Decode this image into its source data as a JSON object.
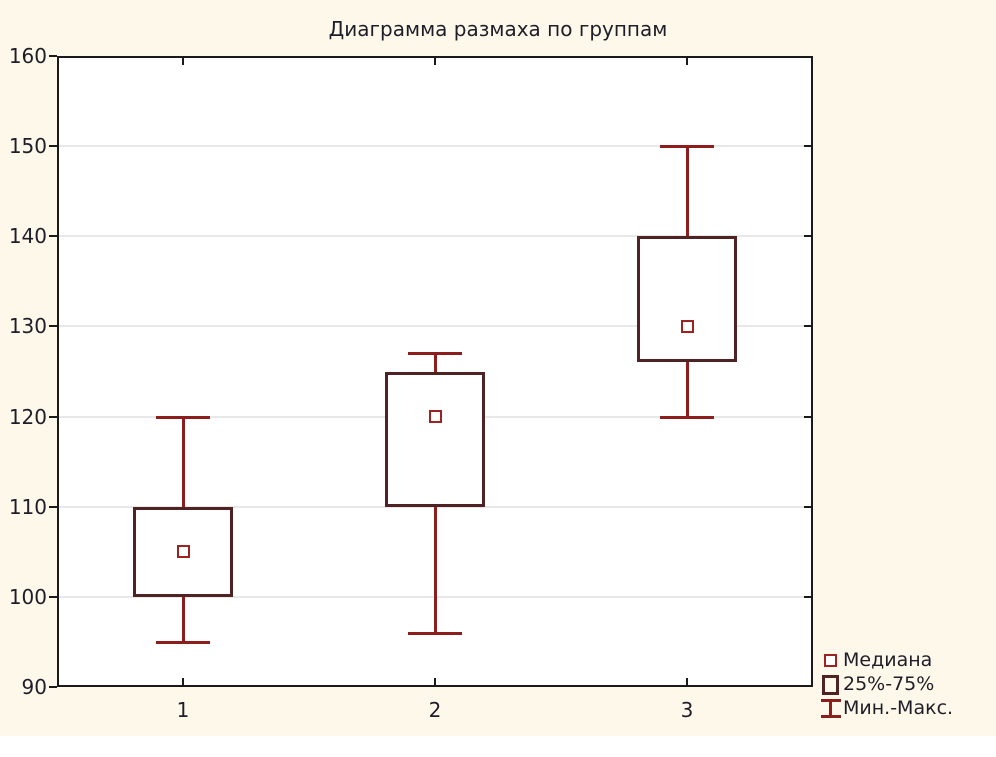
{
  "chart_data": {
    "type": "box",
    "title": "Диаграмма размаха по группам",
    "categories": [
      "1",
      "2",
      "3"
    ],
    "series": [
      {
        "group": "1",
        "min": 95,
        "q1": 100,
        "median": 105,
        "q3": 110,
        "max": 120
      },
      {
        "group": "2",
        "min": 96,
        "q1": 110,
        "median": 120,
        "q3": 125,
        "max": 127
      },
      {
        "group": "3",
        "min": 120,
        "q1": 126,
        "median": 130,
        "q3": 140,
        "max": 150
      }
    ],
    "xlabel": "",
    "ylabel": "",
    "ylim": [
      90,
      160
    ],
    "ytick_step": 10,
    "grid": "horizontal-major",
    "legend_position": "bottom-right",
    "legend": [
      {
        "symbol": "median-square-icon",
        "label": "Медиана"
      },
      {
        "symbol": "box-icon",
        "label": "25%-75%"
      },
      {
        "symbol": "min-max-icon",
        "label": "Мин.-Макс."
      }
    ],
    "colors": {
      "canvas_background": "#fdf8ea",
      "plot_background": "#ffffff",
      "frame": "#1a1a1a",
      "gridline": "#e8e8e8",
      "text": "#1e1e28",
      "whisker": "#8e1e1e",
      "box_border": "#4f2323",
      "median_border": "#9e2222"
    }
  }
}
